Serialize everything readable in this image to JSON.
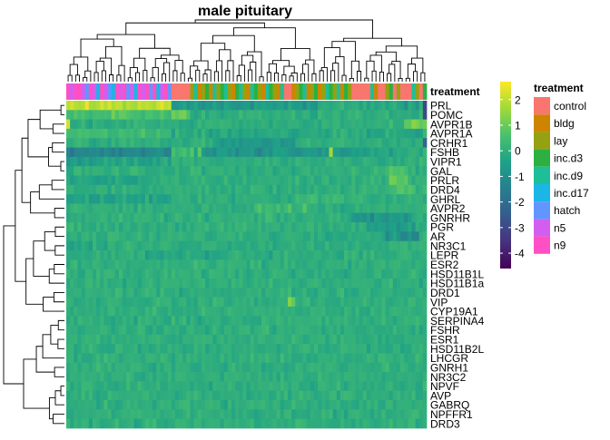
{
  "chart_data": {
    "type": "heatmap",
    "title": "male pituitary",
    "annotation_label": "treatment",
    "genes": [
      "PRL",
      "POMC",
      "AVPR1B",
      "AVPR1A",
      "CRHR1",
      "FSHB",
      "VIPR1",
      "GAL",
      "PRLR",
      "DRD4",
      "GHRL",
      "AVPR2",
      "GNRHR",
      "PGR",
      "AR",
      "NR3C1",
      "LEPR",
      "ESR2",
      "HSD11B1L",
      "HSD11B1a",
      "DRD1",
      "VIP",
      "CYP19A1",
      "SERPINA4",
      "FSHR",
      "ESR1",
      "HSD11B2L",
      "LHCGR",
      "GNRH1",
      "NR3C2",
      "NPVF",
      "AVP",
      "GABRQ",
      "NPFFR1",
      "DRD3"
    ],
    "column_treatments": [
      "n9",
      "n5",
      "n9",
      "n9",
      "n5",
      "hatch",
      "n9",
      "n5",
      "inc.d17",
      "n9",
      "n5",
      "hatch",
      "inc.d17",
      "n9",
      "n5",
      "n9",
      "hatch",
      "n5",
      "inc.d17",
      "n9",
      "n5",
      "n9",
      "hatch",
      "n9",
      "inc.d17",
      "n5",
      "n9",
      "hatch",
      "control",
      "control",
      "control",
      "control",
      "control",
      "lay",
      "inc.d9",
      "bldg",
      "lay",
      "inc.d3",
      "bldg",
      "inc.d9",
      "lay",
      "inc.d3",
      "inc.d9",
      "lay",
      "bldg",
      "inc.d3",
      "inc.d9",
      "lay",
      "bldg",
      "inc.d9",
      "inc.d3",
      "lay",
      "bldg",
      "inc.d9",
      "inc.d3",
      "lay",
      "bldg",
      "inc.d9",
      "control",
      "control",
      "bldg",
      "lay",
      "inc.d3",
      "inc.d9",
      "bldg",
      "lay",
      "inc.d3",
      "bldg",
      "lay",
      "inc.d9",
      "inc.d3",
      "lay",
      "inc.d9",
      "bldg",
      "inc.d3",
      "lay",
      "control",
      "control",
      "control",
      "control",
      "control",
      "inc.d9",
      "bldg",
      "control",
      "control",
      "lay",
      "inc.d3",
      "control",
      "lay",
      "control",
      "control",
      "control",
      "inc.d9",
      "lay",
      "control",
      "inc.d3"
    ],
    "legend_treatments": [
      {
        "name": "control",
        "color": "#F8766D"
      },
      {
        "name": "bldg",
        "color": "#CD8500"
      },
      {
        "name": "lay",
        "color": "#95A111"
      },
      {
        "name": "inc.d3",
        "color": "#2CB042"
      },
      {
        "name": "inc.d9",
        "color": "#1EBE98"
      },
      {
        "name": "inc.d17",
        "color": "#1BB5E6"
      },
      {
        "name": "hatch",
        "color": "#6196FF"
      },
      {
        "name": "n5",
        "color": "#D25EF0"
      },
      {
        "name": "n9",
        "color": "#FF4FC4"
      }
    ],
    "color_scale": {
      "min": -4.6,
      "max": 2.7,
      "ticks": [
        2,
        1,
        0,
        -1,
        -2,
        -3,
        -4
      ],
      "palette": [
        "#440154",
        "#46327E",
        "#365C8D",
        "#277F8E",
        "#1FA187",
        "#4AC16D",
        "#9FDA3A",
        "#FDE725"
      ]
    },
    "row_effects": [
      [
        {
          "c": [
            0,
            27
          ],
          "v": 2.0
        },
        {
          "c": [
            28,
            66
          ],
          "v": -0.6
        },
        {
          "c": [
            67,
            94
          ],
          "v": -0.2
        },
        {
          "c": [
            95,
            96
          ],
          "v": -3.5
        }
      ],
      [
        {
          "c": [
            0,
            27
          ],
          "v": 0.5
        },
        {
          "c": [
            28,
            32
          ],
          "v": 1.2
        },
        {
          "c": [
            95,
            96
          ],
          "v": -3.0
        }
      ],
      [
        {
          "c": [
            0,
            0
          ],
          "v": 2.2
        },
        {
          "c": [
            90,
            96
          ],
          "v": 0.8
        }
      ],
      [
        {
          "c": [
            0,
            27
          ],
          "v": 0.3
        },
        {
          "c": [
            28,
            96
          ],
          "v": -0.2
        }
      ],
      [
        {
          "c": [
            95,
            96
          ],
          "v": -2.5
        },
        {
          "c": [
            40,
            60
          ],
          "v": -0.6
        }
      ],
      [
        {
          "c": [
            0,
            27
          ],
          "v": -1.3
        },
        {
          "c": [
            28,
            33
          ],
          "v": 0.4
        },
        {
          "c": [
            34,
            78
          ],
          "v": -0.7
        },
        {
          "c": [
            35,
            35
          ],
          "v": 1.6
        },
        {
          "c": [
            70,
            70
          ],
          "v": 1.8
        },
        {
          "c": [
            79,
            94
          ],
          "v": -0.3
        }
      ],
      [
        {
          "c": [
            0,
            27
          ],
          "v": -0.4
        }
      ],
      [
        {
          "c": [
            85,
            90
          ],
          "v": 0.6
        }
      ],
      [
        {
          "c": [
            86,
            90
          ],
          "v": 0.9
        },
        {
          "c": [
            0,
            20
          ],
          "v": -0.3
        }
      ],
      [
        {
          "c": [
            88,
            92
          ],
          "v": 0.7
        }
      ],
      [
        {
          "c": [
            0,
            27
          ],
          "v": -0.4
        },
        {
          "c": [
            60,
            75
          ],
          "v": 0.3
        }
      ],
      [
        {
          "c": [
            50,
            65
          ],
          "v": 0.4
        }
      ],
      [
        {
          "c": [
            75,
            92
          ],
          "v": -0.6
        }
      ],
      [
        {
          "c": [
            80,
            92
          ],
          "v": -0.5
        }
      ],
      [
        {
          "c": [
            85,
            93
          ],
          "v": -0.9
        }
      ],
      [
        {
          "c": [
            0,
            10
          ],
          "v": -0.3
        }
      ],
      [
        {
          "c": [
            20,
            40
          ],
          "v": -0.3
        }
      ],
      [],
      [],
      [],
      [],
      [
        {
          "c": [
            59,
            60
          ],
          "v": 1.0
        }
      ],
      [],
      [],
      [],
      [],
      [],
      [],
      [],
      [],
      [],
      [],
      [],
      [],
      []
    ]
  }
}
